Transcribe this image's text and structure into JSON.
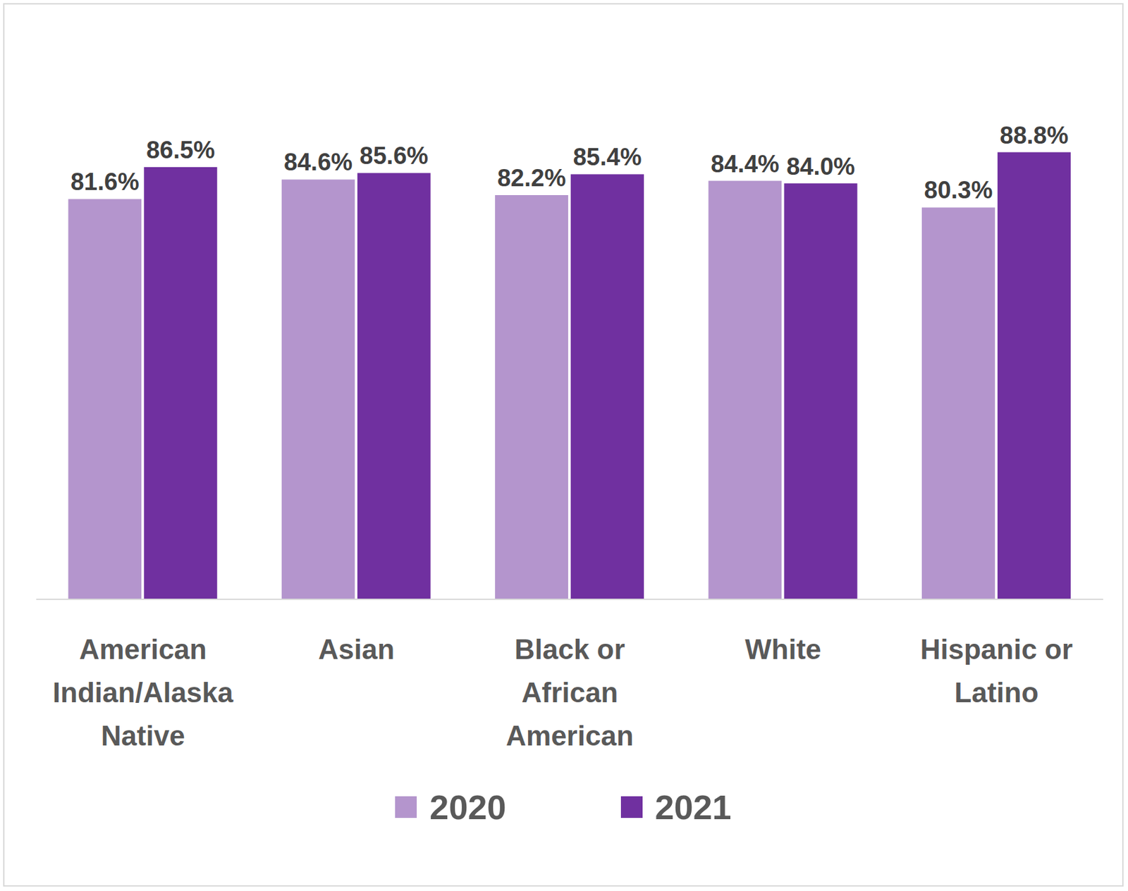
{
  "chart_data": {
    "type": "bar",
    "categories": [
      "American Indian/Alaska Native",
      "Asian",
      "Black or African American",
      "White",
      "Hispanic or Latino"
    ],
    "series": [
      {
        "name": "2020",
        "color": "#b495cd",
        "values": [
          81.6,
          84.6,
          82.2,
          84.4,
          80.3
        ],
        "value_labels": [
          "81.6%",
          "84.6%",
          "82.2%",
          "84.4%",
          "80.3%"
        ]
      },
      {
        "name": "2021",
        "color": "#7030a0",
        "values": [
          86.5,
          85.6,
          85.4,
          84.0,
          88.8
        ],
        "value_labels": [
          "86.5%",
          "85.6%",
          "85.4%",
          "84.0%",
          "88.8%"
        ]
      }
    ],
    "ylim": [
      20,
      100
    ],
    "tick_labels": "x",
    "data_labels": true,
    "legend": "bottom",
    "grid": false
  }
}
